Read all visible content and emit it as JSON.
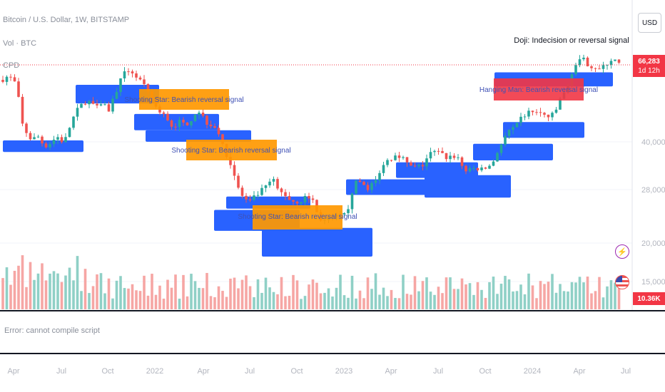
{
  "header": {
    "symbol_line": "Bitcoin / U.S. Dollar, 1W, BITSTAMP",
    "volume_line": "Vol · BTC",
    "indicator_line": "CPD"
  },
  "currency_button": "USD",
  "price_axis": {
    "current_price": "66,283",
    "countdown": "1d 12h",
    "volume_value": "10.36K"
  },
  "error_pane": {
    "message": "Error: cannot compile script"
  },
  "icons": {
    "lightning": "lightning-icon",
    "flag": "us-flag-icon"
  },
  "colors": {
    "bull": "#26a69a",
    "bear": "#ef5350",
    "zone": "#2962ff",
    "label_orange": "#ff9800",
    "label_red": "#f23645",
    "vol_bull": "#8fd0c6",
    "vol_bear": "#f6a6a4"
  },
  "chart_data": {
    "type": "candlestick",
    "title": "Bitcoin / U.S. Dollar, 1W, BITSTAMP",
    "y_scale": "log",
    "y_ticks": [
      "40,000",
      "28,000",
      "20,000",
      "15,000"
    ],
    "x_tick_labels": [
      "Apr",
      "Jul",
      "Oct",
      "2022",
      "Apr",
      "Jul",
      "Oct",
      "2023",
      "Apr",
      "Jul",
      "Oct",
      "2024",
      "Apr",
      "Jul"
    ],
    "last_price": 66283,
    "annotations": [
      {
        "text": "Shooting Star: Bearish reversal signal",
        "style": "orange"
      },
      {
        "text": "Shooting Star: Bearish reversal signal",
        "style": "orange"
      },
      {
        "text": "Shooting Star: Bearish reversal signal",
        "style": "orange"
      },
      {
        "text": "Hanging Man: Bearish reversal signal",
        "style": "red"
      },
      {
        "text": "Doji: Indecision or reversal signal",
        "style": "plain"
      }
    ],
    "close_path": [
      [
        0,
        58000
      ],
      [
        10,
        60000
      ],
      [
        20,
        56000
      ],
      [
        30,
        38000
      ],
      [
        42,
        34000
      ],
      [
        52,
        35000
      ],
      [
        60,
        32000
      ],
      [
        68,
        33000
      ],
      [
        78,
        35000
      ],
      [
        88,
        33000
      ],
      [
        100,
        41000
      ],
      [
        108,
        45000
      ],
      [
        118,
        48000
      ],
      [
        130,
        47000
      ],
      [
        142,
        48000
      ],
      [
        150,
        44000
      ],
      [
        158,
        50000
      ],
      [
        166,
        57000
      ],
      [
        174,
        62000
      ],
      [
        180,
        64000
      ],
      [
        188,
        60000
      ],
      [
        196,
        57000
      ],
      [
        204,
        52000
      ],
      [
        212,
        48000
      ],
      [
        222,
        43000
      ],
      [
        230,
        42000
      ],
      [
        240,
        38000
      ],
      [
        248,
        40000
      ],
      [
        256,
        39000
      ],
      [
        264,
        40000
      ],
      [
        270,
        43000
      ],
      [
        278,
        44000
      ],
      [
        286,
        40000
      ],
      [
        294,
        39000
      ],
      [
        302,
        38000
      ],
      [
        310,
        32000
      ],
      [
        318,
        29000
      ],
      [
        326,
        25000
      ],
      [
        332,
        22000
      ],
      [
        340,
        20000
      ],
      [
        348,
        19500
      ],
      [
        356,
        20500
      ],
      [
        364,
        21500
      ],
      [
        372,
        22500
      ],
      [
        380,
        24000
      ],
      [
        388,
        21500
      ],
      [
        396,
        21000
      ],
      [
        404,
        20000
      ],
      [
        412,
        19500
      ],
      [
        420,
        19800
      ],
      [
        428,
        20500
      ],
      [
        436,
        20000
      ],
      [
        444,
        17000
      ],
      [
        452,
        16500
      ],
      [
        460,
        16800
      ],
      [
        468,
        17000
      ],
      [
        476,
        17200
      ],
      [
        484,
        17500
      ],
      [
        490,
        21000
      ],
      [
        496,
        23000
      ],
      [
        504,
        23500
      ],
      [
        512,
        22000
      ],
      [
        520,
        23000
      ],
      [
        528,
        24000
      ],
      [
        536,
        28000
      ],
      [
        544,
        28500
      ],
      [
        552,
        30000
      ],
      [
        560,
        29500
      ],
      [
        570,
        27000
      ],
      [
        580,
        26500
      ],
      [
        590,
        27000
      ],
      [
        600,
        30000
      ],
      [
        608,
        30500
      ],
      [
        616,
        30000
      ],
      [
        624,
        29000
      ],
      [
        632,
        29500
      ],
      [
        640,
        29000
      ],
      [
        648,
        26000
      ],
      [
        656,
        25800
      ],
      [
        664,
        26500
      ],
      [
        672,
        26000
      ],
      [
        680,
        26500
      ],
      [
        688,
        27500
      ],
      [
        696,
        31000
      ],
      [
        704,
        34000
      ],
      [
        712,
        37000
      ],
      [
        720,
        37500
      ],
      [
        728,
        41000
      ],
      [
        736,
        43000
      ],
      [
        744,
        44000
      ],
      [
        752,
        43000
      ],
      [
        760,
        42500
      ],
      [
        768,
        41500
      ],
      [
        776,
        43000
      ],
      [
        784,
        50000
      ],
      [
        792,
        52000
      ],
      [
        800,
        63000
      ],
      [
        808,
        68000
      ],
      [
        816,
        69000
      ],
      [
        824,
        66000
      ],
      [
        832,
        65000
      ],
      [
        840,
        63000
      ],
      [
        848,
        67000
      ],
      [
        856,
        70000
      ],
      [
        864,
        67000
      ],
      [
        868,
        66283
      ]
    ],
    "support_resistance_zones": [
      {
        "x": [
          2,
          115
        ],
        "y": [
          33800,
          30500
        ]
      },
      {
        "x": [
          104,
          221
        ],
        "y": [
          55500,
          47000
        ]
      },
      {
        "x": [
          186,
          305
        ],
        "y": [
          42800,
          37000
        ]
      },
      {
        "x": [
          202,
          350
        ],
        "y": [
          37000,
          33400
        ]
      },
      {
        "x": [
          315,
          433
        ],
        "y": [
          20500,
          18400
        ]
      },
      {
        "x": [
          298,
          418
        ],
        "y": [
          18200,
          15100
        ]
      },
      {
        "x": [
          365,
          520
        ],
        "y": [
          15500,
          12000
        ]
      },
      {
        "x": [
          483,
          602
        ],
        "y": [
          23900,
          20800
        ]
      },
      {
        "x": [
          553,
          668
        ],
        "y": [
          27800,
          24200
        ]
      },
      {
        "x": [
          593,
          714
        ],
        "y": [
          24800,
          20300
        ]
      },
      {
        "x": [
          661,
          773
        ],
        "y": [
          32800,
          28300
        ]
      },
      {
        "x": [
          703,
          817
        ],
        "y": [
          39800,
          34600
        ]
      },
      {
        "x": [
          691,
          857
        ],
        "y": [
          62000,
          54700
        ]
      }
    ]
  }
}
